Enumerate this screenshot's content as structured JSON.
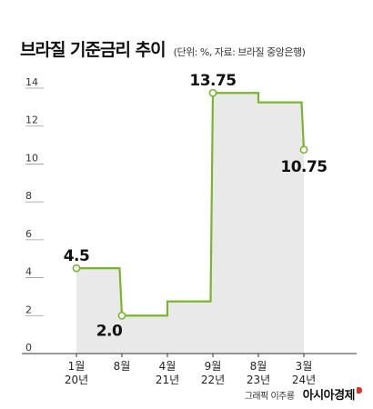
{
  "title": "브라질 기준금리 추이",
  "subtitle": "(단위: %, 자료: 브라질 중앙은행)",
  "credit": {
    "graphic": "그래픽 이주룡",
    "brand": "아시아경제"
  },
  "colors": {
    "line": "#7ab530",
    "area": "#e9e9e9",
    "axis": "#333333"
  },
  "chart_data": {
    "type": "line",
    "step": true,
    "area_fill": true,
    "title": "브라질 기준금리 추이",
    "ylim": [
      0,
      14
    ],
    "yticks": [
      0,
      2,
      4,
      6,
      8,
      10,
      12,
      14
    ],
    "grid": false,
    "x_labels": [
      {
        "top": "1월",
        "bottom": "20년"
      },
      {
        "top": "8월",
        "bottom": ""
      },
      {
        "top": "4월",
        "bottom": "21년"
      },
      {
        "top": "9월",
        "bottom": "22년"
      },
      {
        "top": "8월",
        "bottom": "23년"
      },
      {
        "top": "3월",
        "bottom": "24년"
      }
    ],
    "series": [
      {
        "points": [
          {
            "x": 0,
            "y": 4.5
          },
          {
            "x": 0.95,
            "y": 4.5
          },
          {
            "x": 1.0,
            "y": 2.0
          },
          {
            "x": 2.0,
            "y": 2.0
          },
          {
            "x": 2.0,
            "y": 2.75
          },
          {
            "x": 2.95,
            "y": 2.75
          },
          {
            "x": 3.0,
            "y": 13.75
          },
          {
            "x": 4.0,
            "y": 13.75
          },
          {
            "x": 4.0,
            "y": 13.25
          },
          {
            "x": 4.95,
            "y": 13.25
          },
          {
            "x": 5.0,
            "y": 10.75
          }
        ]
      }
    ],
    "labels": [
      {
        "x": 0,
        "y": 4.5,
        "text": "4.5",
        "pos": "above"
      },
      {
        "x": 1,
        "y": 2.0,
        "text": "2.0",
        "pos": "left-below"
      },
      {
        "x": 3,
        "y": 13.75,
        "text": "13.75",
        "pos": "above"
      },
      {
        "x": 5,
        "y": 10.75,
        "text": "10.75",
        "pos": "below"
      }
    ],
    "markers": [
      {
        "x": 0,
        "y": 4.5
      },
      {
        "x": 1,
        "y": 2.0
      },
      {
        "x": 3,
        "y": 13.75
      },
      {
        "x": 5,
        "y": 10.75
      }
    ]
  }
}
